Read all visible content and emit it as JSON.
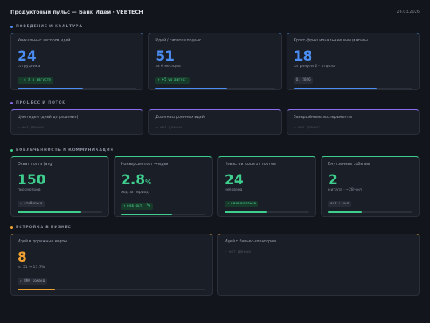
{
  "header": {
    "title": "Продуктовый пульс — Банк Идей · VEBTECH",
    "date": "26.03.2026"
  },
  "sections": [
    {
      "title": "ПОВЕДЕНИЕ И КУЛЬТУРА",
      "cards": [
        {
          "label": "Уникальных авторов идей",
          "value": "24",
          "note": "сотрудника",
          "badge": "↑ с 8 в августе"
        },
        {
          "label": "Идей / гипотез подано",
          "value": "51",
          "note": "за 6 месяцев",
          "badge": "↑ +5 vs август"
        },
        {
          "label": "Кросс-функциональные инициативы",
          "value": "18",
          "note": "затронули 2+ отдела",
          "badge": "Q1 2026"
        }
      ]
    },
    {
      "title": "ПРОЦЕСС И ПОТОК",
      "cards": [
        {
          "label": "Цикл идеи (дней до решения)",
          "empty": "— нет данных"
        },
        {
          "label": "Доля настроенных идей",
          "empty": "— нет данных"
        },
        {
          "label": "Завершённые эксперименты",
          "empty": "— нет данных"
        }
      ]
    },
    {
      "title": "ВОВЛЕЧЁННОСТЬ И КОММУНИКАЦИЯ",
      "cards": [
        {
          "label": "Охват поста (avg)",
          "value": "150",
          "note": "просмотров",
          "badge": "= стабильно"
        },
        {
          "label": "Конверсия пост → идея",
          "value": "2.8",
          "unit": "%",
          "note": "ход за период",
          "badge": "↑ нов окт. 7%"
        },
        {
          "label": "Новых авторов от постов",
          "value": "24",
          "note": "человека",
          "badge": "↑ накопительно"
        },
        {
          "label": "Внутренних событий",
          "value": "2",
          "note": "митапа · ~28 чел.",
          "badge": "окт + ноя"
        }
      ]
    },
    {
      "title": "ВСТРОЙКА В БИЗНЕС",
      "cards": [
        {
          "label": "Идей в дорожные карты",
          "value": "8",
          "note": "из 51 → 15.7%",
          "badge": "= 8КФ команд"
        },
        {
          "label": "Идей с бизнес-спонсором",
          "empty": "— нет данных"
        }
      ]
    }
  ]
}
